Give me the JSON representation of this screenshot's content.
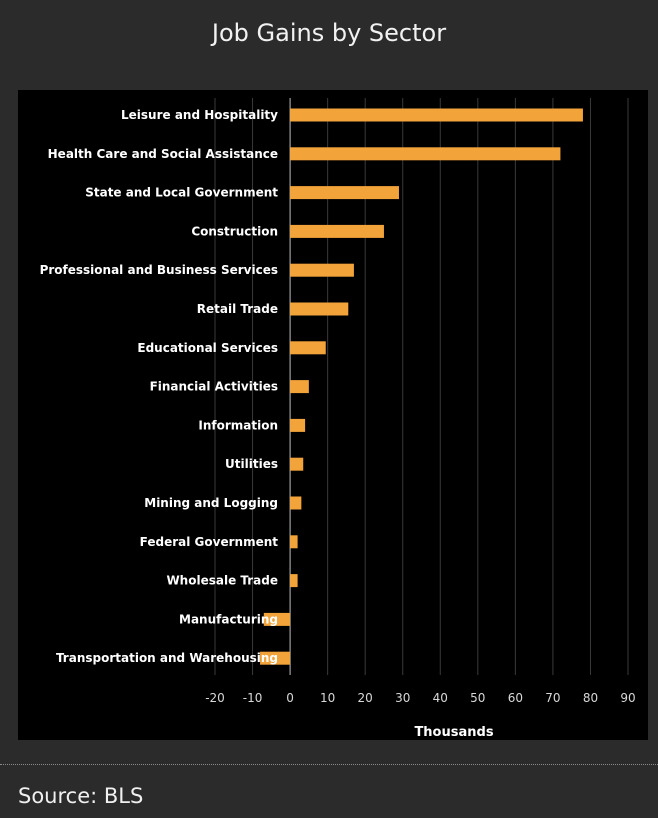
{
  "title": "Job Gains by Sector",
  "source": "Source: BLS",
  "colors": {
    "background": "#2b2b2b",
    "panel": "#000000",
    "bar": "#f2a33a",
    "grid": "#3a3a3a",
    "text": "#ffffff"
  },
  "chart_data": {
    "type": "bar",
    "orientation": "horizontal",
    "categories": [
      "Leisure and Hospitality",
      "Health Care and Social Assistance",
      "State and Local Government",
      "Construction",
      "Professional and Business Services",
      "Retail Trade",
      "Educational Services",
      "Financial Activities",
      "Information",
      "Utilities",
      "Mining and Logging",
      "Federal Government",
      "Wholesale Trade",
      "Manufacturing",
      "Transportation and Warehousing"
    ],
    "values": [
      78,
      72,
      29,
      25,
      17,
      15.5,
      9.5,
      5,
      4,
      3.5,
      3,
      2,
      2,
      -7,
      -8
    ],
    "xlabel": "Thousands",
    "xlim": [
      -20,
      90
    ],
    "xticks": [
      -20,
      -10,
      0,
      10,
      20,
      30,
      40,
      50,
      60,
      70,
      80,
      90
    ],
    "grid": "vertical"
  }
}
